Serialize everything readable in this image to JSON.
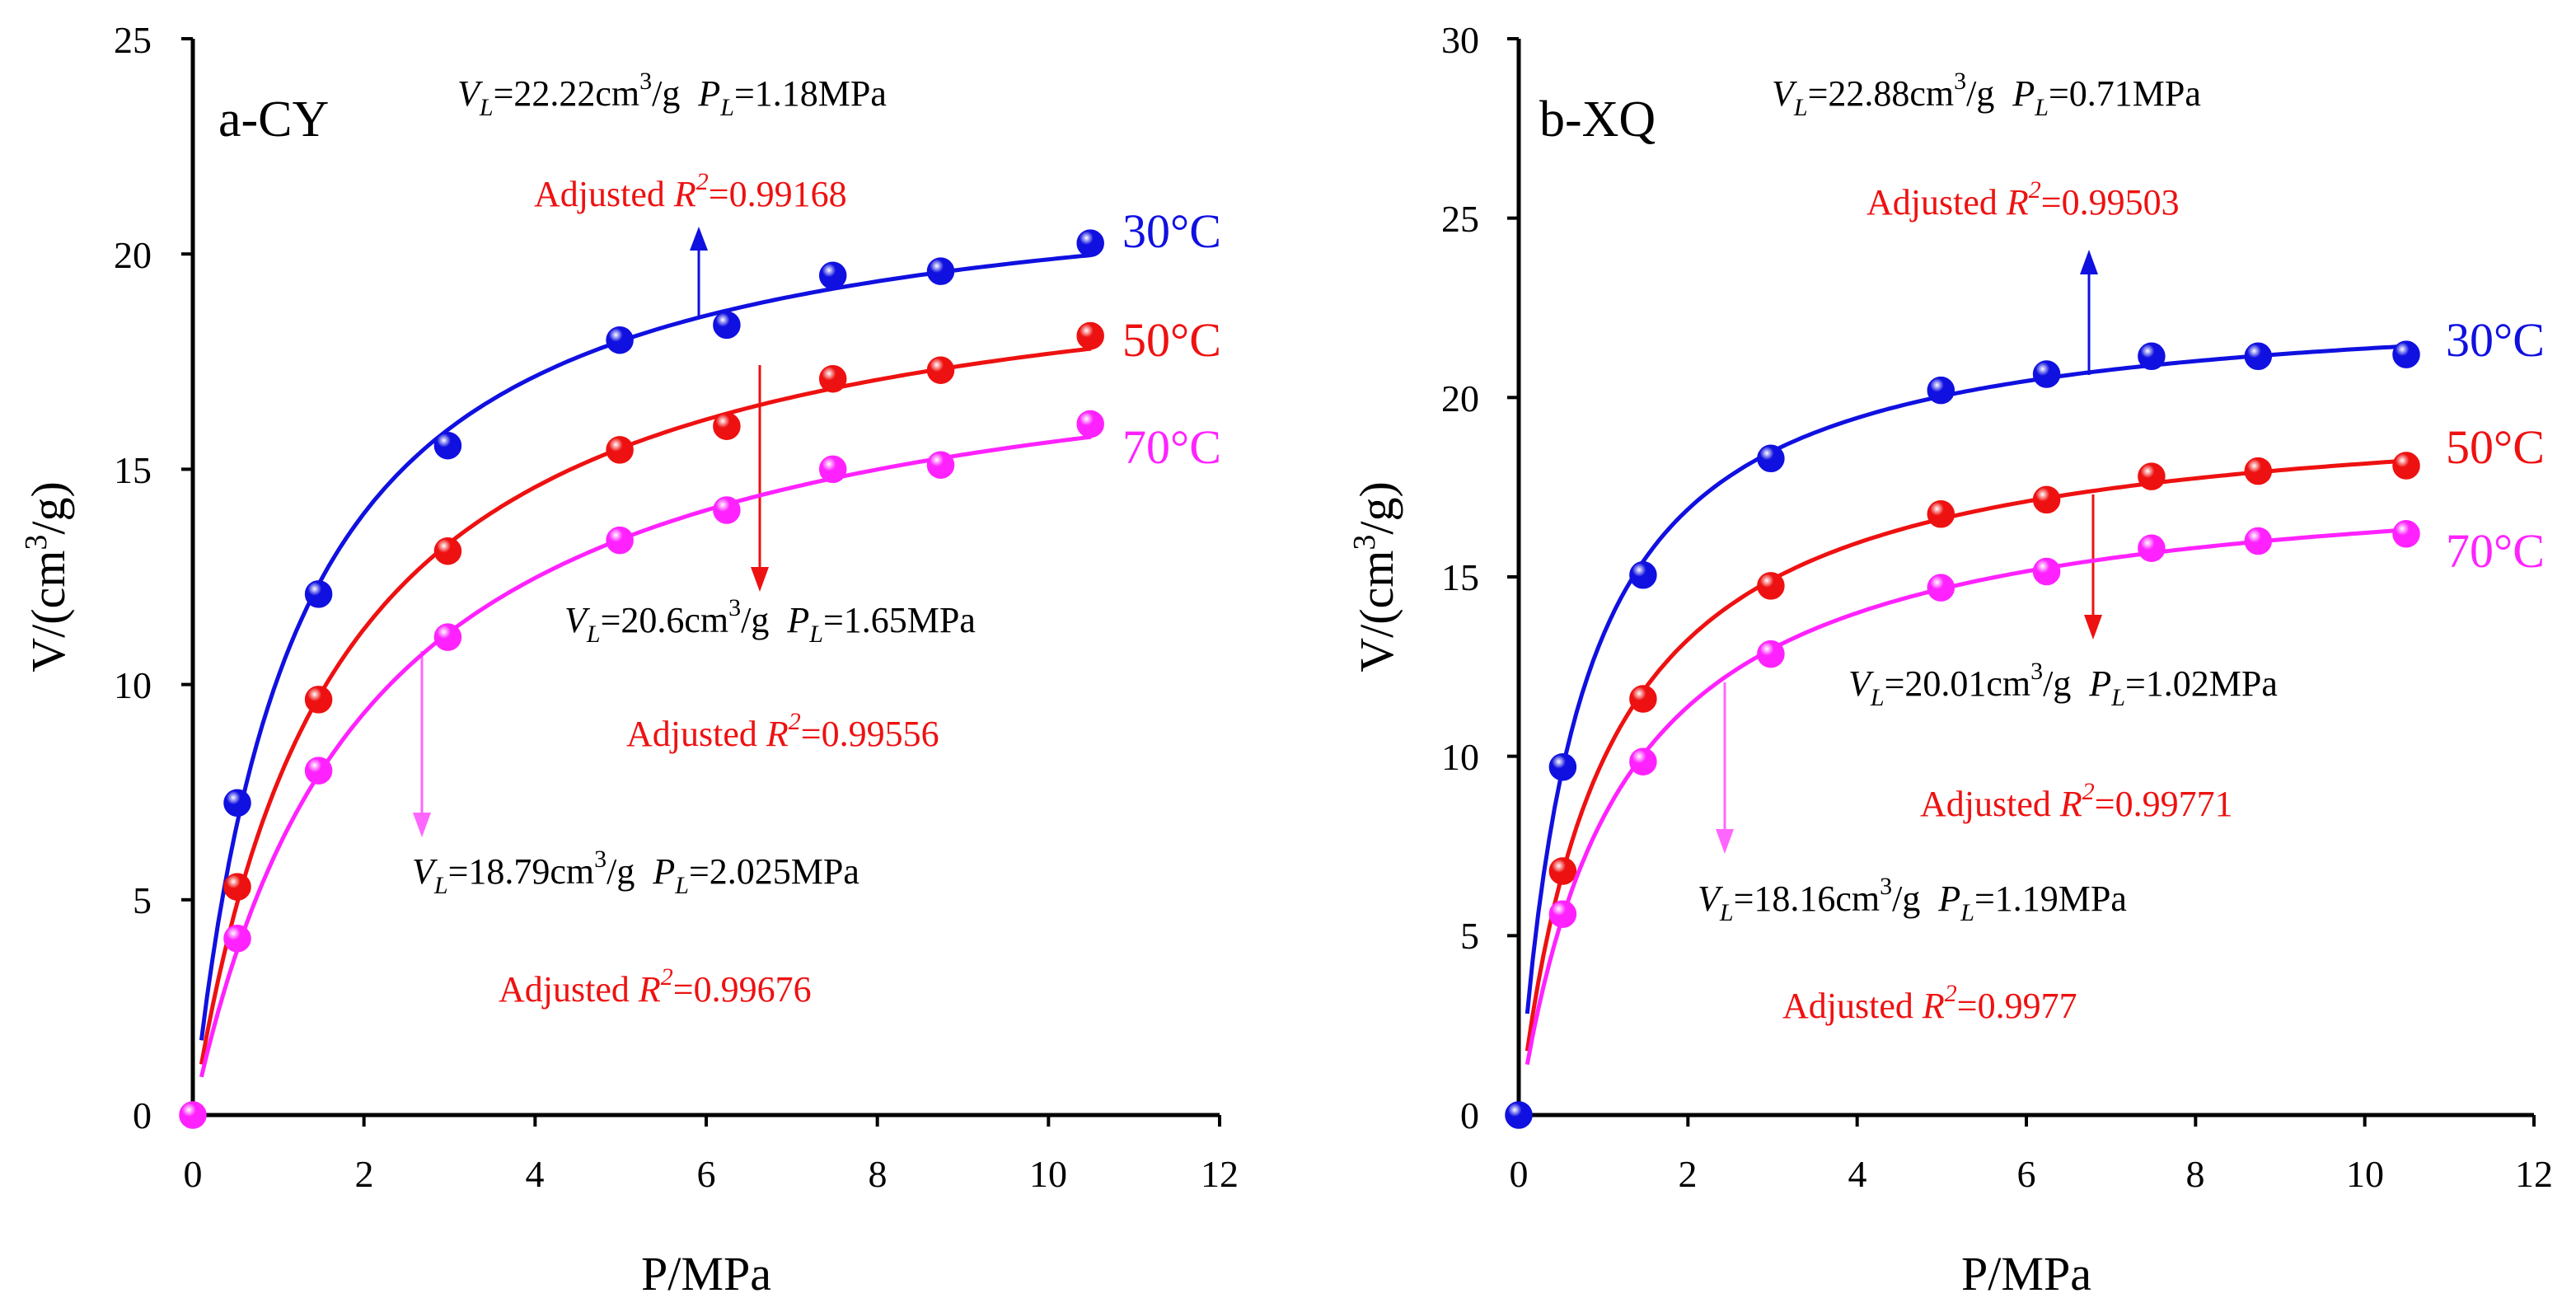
{
  "colors": {
    "s30": "#1010e0",
    "s50": "#ee1111",
    "s70": "#ff22ff",
    "axis": "#000000"
  },
  "chart_data": [
    {
      "type": "scatter",
      "panel_label": "a-CY",
      "xlabel": "P/MPa",
      "ylabel": "V/(cm3/g)",
      "xlim": [
        0,
        12
      ],
      "ylim": [
        0,
        25
      ],
      "xticks": [
        "0",
        "2",
        "4",
        "6",
        "8",
        "10",
        "12"
      ],
      "yticks": [
        "0",
        "5",
        "10",
        "15",
        "20",
        "25"
      ],
      "series": [
        {
          "name": "30°C",
          "color": "#1010e0",
          "x": [
            0.52,
            1.47,
            2.98,
            4.99,
            6.24,
            7.48,
            8.74,
            10.49
          ],
          "y": [
            7.25,
            12.1,
            15.55,
            18.0,
            18.35,
            19.5,
            19.6,
            20.25
          ],
          "fit": {
            "VL": 22.22,
            "PL": 1.18
          },
          "vl_text": "=22.22cm",
          "pl_text": "=1.18MPa",
          "r2_text": "=0.99168"
        },
        {
          "name": "50°C",
          "color": "#ee1111",
          "x": [
            0.52,
            1.47,
            2.98,
            4.99,
            6.24,
            7.48,
            8.74,
            10.49
          ],
          "y": [
            5.3,
            9.65,
            13.1,
            15.45,
            16.0,
            17.1,
            17.3,
            18.1
          ],
          "fit": {
            "VL": 20.6,
            "PL": 1.65
          },
          "vl_text": "=20.6cm",
          "pl_text": "=1.65MPa",
          "r2_text": "=0.99556"
        },
        {
          "name": "70°C",
          "color": "#ff22ff",
          "x": [
            0.0,
            0.52,
            1.47,
            2.98,
            4.99,
            6.24,
            7.48,
            8.74,
            10.49
          ],
          "y": [
            0.0,
            4.1,
            8.0,
            11.1,
            13.35,
            14.05,
            15.0,
            15.1,
            16.05
          ],
          "fit": {
            "VL": 18.79,
            "PL": 2.025
          },
          "vl_text": "=18.79cm",
          "pl_text": "=2.025MPa",
          "r2_text": "=0.99676"
        }
      ]
    },
    {
      "type": "scatter",
      "panel_label": "b-XQ",
      "xlabel": "P/MPa",
      "ylabel": "V/(cm3/g)",
      "xlim": [
        0,
        12
      ],
      "ylim": [
        0,
        30
      ],
      "xticks": [
        "0",
        "2",
        "4",
        "6",
        "8",
        "10",
        "12"
      ],
      "yticks": [
        "0",
        "5",
        "10",
        "15",
        "20",
        "25",
        "30"
      ],
      "series": [
        {
          "name": "30°C",
          "color": "#1010e0",
          "x": [
            0.0,
            0.52,
            1.47,
            2.98,
            4.99,
            6.24,
            7.48,
            8.74,
            10.49
          ],
          "y": [
            0.0,
            9.7,
            15.05,
            18.3,
            20.2,
            20.65,
            21.15,
            21.15,
            21.2
          ],
          "fit": {
            "VL": 22.88,
            "PL": 0.71
          },
          "vl_text": "=22.88cm",
          "pl_text": "=0.71MPa",
          "r2_text": "=0.99503"
        },
        {
          "name": "50°C",
          "color": "#ee1111",
          "x": [
            0.52,
            1.47,
            2.98,
            4.99,
            6.24,
            7.48,
            8.74,
            10.49
          ],
          "y": [
            6.8,
            11.6,
            14.75,
            16.75,
            17.15,
            17.8,
            17.95,
            18.1
          ],
          "fit": {
            "VL": 20.01,
            "PL": 1.02
          },
          "vl_text": "=20.01cm",
          "pl_text": "=1.02MPa",
          "r2_text": "=0.99771"
        },
        {
          "name": "70°C",
          "color": "#ff22ff",
          "x": [
            0.52,
            1.47,
            2.98,
            4.99,
            6.24,
            7.48,
            8.74,
            10.49
          ],
          "y": [
            5.6,
            9.85,
            12.85,
            14.7,
            15.15,
            15.8,
            16.0,
            16.2
          ],
          "fit": {
            "VL": 18.16,
            "PL": 1.19
          },
          "vl_text": "=18.16cm",
          "pl_text": "=1.19MPa",
          "r2_text": "=0.9977"
        }
      ]
    }
  ],
  "text": {
    "vl_sub": "L",
    "pl_sub": "L",
    "v_letter": "V",
    "p_letter": "P",
    "unit_exp": "3",
    "unit_tail": "/g",
    "r2_prefix": "Adjusted ",
    "r2_letter": "R",
    "r2_exp": "2",
    "ylabel_main": "V/(cm",
    "ylabel_exp": "3",
    "ylabel_tail": "/g)"
  }
}
